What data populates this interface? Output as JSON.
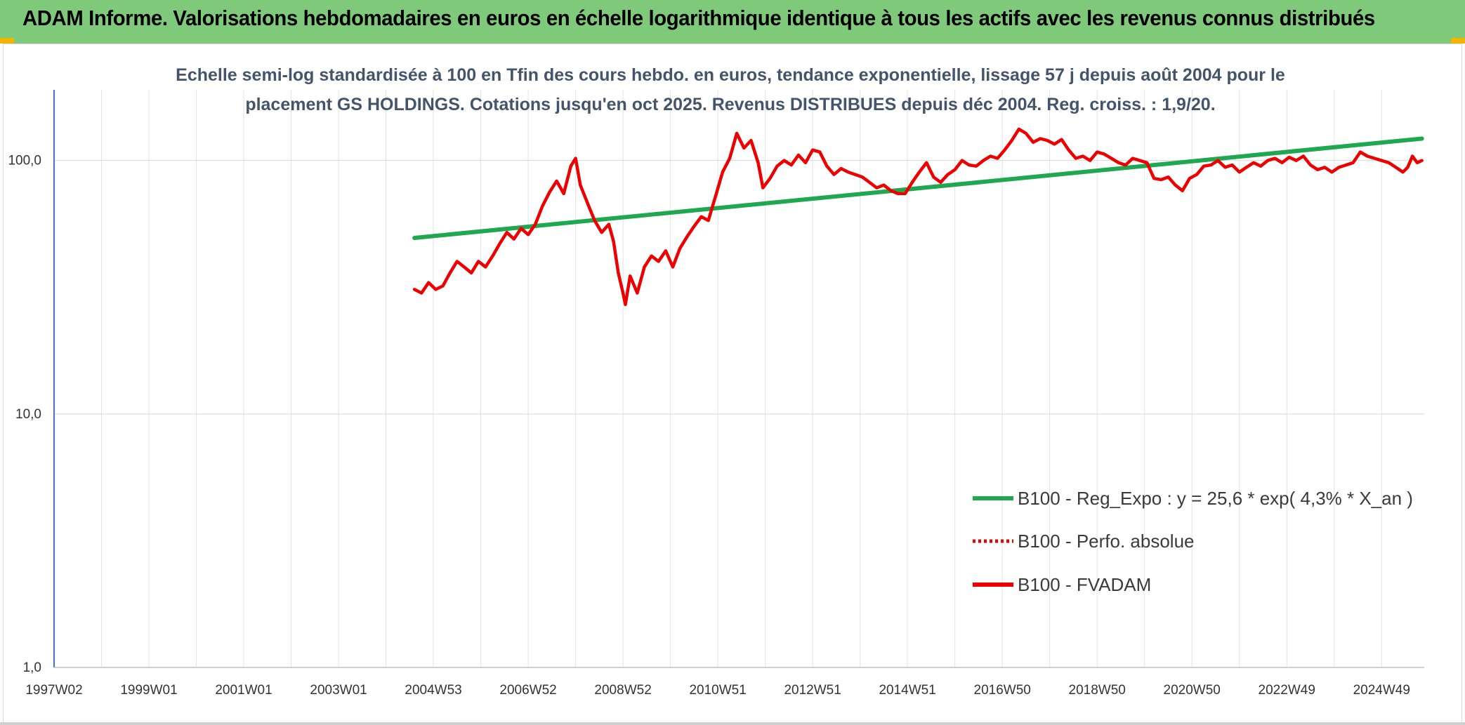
{
  "header": {
    "title": "ADAM Informe. Valorisations hebdomadaires en euros en échelle logarithmique identique à tous les actifs avec les revenus connus distribués"
  },
  "colors": {
    "header_bg": "#7fc97a",
    "trend": "#1fa84f",
    "price": "#ee0000",
    "subtitle": "#44546a"
  },
  "chart_data": {
    "type": "line",
    "title_lines": [
      "Echelle semi-log standardisée à 100 en Tfin des cours hebdo. en euros, tendance exponentielle, lissage 57 j depuis août 2004 pour le",
      "placement GS HOLDINGS. Cotations jusqu'en oct 2025. Revenus DISTRIBUES depuis déc 2004. Reg. croiss. : 1,9/20."
    ],
    "y_scale": "log",
    "ylim": [
      1,
      190
    ],
    "y_ticks": [
      {
        "value": 1,
        "label": "1,0"
      },
      {
        "value": 10,
        "label": "10,0"
      },
      {
        "value": 100,
        "label": "100,0"
      }
    ],
    "xlim": [
      1997.0,
      2025.9
    ],
    "x_ticks": [
      {
        "value": 1997.0,
        "label": "1997W02"
      },
      {
        "value": 1999.0,
        "label": "1999W01"
      },
      {
        "value": 2001.0,
        "label": "2001W01"
      },
      {
        "value": 2003.0,
        "label": "2003W01"
      },
      {
        "value": 2005.0,
        "label": "2004W53"
      },
      {
        "value": 2007.0,
        "label": "2006W52"
      },
      {
        "value": 2009.0,
        "label": "2008W52"
      },
      {
        "value": 2011.0,
        "label": "2010W51"
      },
      {
        "value": 2013.0,
        "label": "2012W51"
      },
      {
        "value": 2015.0,
        "label": "2014W51"
      },
      {
        "value": 2017.0,
        "label": "2016W50"
      },
      {
        "value": 2019.0,
        "label": "2018W50"
      },
      {
        "value": 2021.0,
        "label": "2020W50"
      },
      {
        "value": 2023.0,
        "label": "2022W49"
      },
      {
        "value": 2025.0,
        "label": "2024W49"
      }
    ],
    "grid": true,
    "legend_position": "bottom-right",
    "series": [
      {
        "name": "B100 - Reg_Expo : y = 25,6 * exp( 4,3% *  X_an )",
        "color": "#1fa84f",
        "style": "solid",
        "points": [
          [
            2004.6,
            49.5
          ],
          [
            2025.85,
            122
          ]
        ]
      },
      {
        "name": "B100 - Perfo. absolue",
        "color": "#ee0000",
        "style": "dotted",
        "points": []
      },
      {
        "name": "B100 - FVADAM",
        "color": "#ee0000",
        "style": "solid",
        "points": [
          [
            2004.6,
            31
          ],
          [
            2004.75,
            30
          ],
          [
            2004.9,
            33
          ],
          [
            2005.05,
            31
          ],
          [
            2005.2,
            32
          ],
          [
            2005.35,
            36
          ],
          [
            2005.5,
            40
          ],
          [
            2005.65,
            38
          ],
          [
            2005.8,
            36
          ],
          [
            2005.95,
            40
          ],
          [
            2006.1,
            38
          ],
          [
            2006.25,
            42
          ],
          [
            2006.4,
            47
          ],
          [
            2006.55,
            52
          ],
          [
            2006.7,
            49
          ],
          [
            2006.85,
            54
          ],
          [
            2007.0,
            51
          ],
          [
            2007.15,
            56
          ],
          [
            2007.3,
            66
          ],
          [
            2007.45,
            75
          ],
          [
            2007.6,
            83
          ],
          [
            2007.75,
            74
          ],
          [
            2007.9,
            95
          ],
          [
            2008.0,
            102
          ],
          [
            2008.1,
            80
          ],
          [
            2008.25,
            68
          ],
          [
            2008.4,
            58
          ],
          [
            2008.55,
            52
          ],
          [
            2008.7,
            56
          ],
          [
            2008.8,
            48
          ],
          [
            2008.9,
            36
          ],
          [
            2009.0,
            30
          ],
          [
            2009.05,
            27
          ],
          [
            2009.15,
            35
          ],
          [
            2009.3,
            30
          ],
          [
            2009.45,
            38
          ],
          [
            2009.6,
            42
          ],
          [
            2009.75,
            40
          ],
          [
            2009.9,
            44
          ],
          [
            2010.05,
            38
          ],
          [
            2010.2,
            45
          ],
          [
            2010.35,
            50
          ],
          [
            2010.5,
            55
          ],
          [
            2010.65,
            60
          ],
          [
            2010.8,
            58
          ],
          [
            2010.95,
            72
          ],
          [
            2011.1,
            90
          ],
          [
            2011.25,
            102
          ],
          [
            2011.4,
            128
          ],
          [
            2011.55,
            112
          ],
          [
            2011.7,
            120
          ],
          [
            2011.85,
            98
          ],
          [
            2011.95,
            78
          ],
          [
            2012.1,
            85
          ],
          [
            2012.25,
            95
          ],
          [
            2012.4,
            100
          ],
          [
            2012.55,
            96
          ],
          [
            2012.7,
            105
          ],
          [
            2012.85,
            98
          ],
          [
            2013.0,
            110
          ],
          [
            2013.15,
            108
          ],
          [
            2013.3,
            95
          ],
          [
            2013.45,
            88
          ],
          [
            2013.6,
            93
          ],
          [
            2013.75,
            90
          ],
          [
            2013.9,
            88
          ],
          [
            2014.05,
            86
          ],
          [
            2014.2,
            82
          ],
          [
            2014.35,
            78
          ],
          [
            2014.5,
            80
          ],
          [
            2014.65,
            76
          ],
          [
            2014.8,
            74
          ],
          [
            2014.95,
            74
          ],
          [
            2015.1,
            82
          ],
          [
            2015.25,
            90
          ],
          [
            2015.4,
            98
          ],
          [
            2015.55,
            86
          ],
          [
            2015.7,
            82
          ],
          [
            2015.85,
            88
          ],
          [
            2016.0,
            92
          ],
          [
            2016.15,
            100
          ],
          [
            2016.3,
            96
          ],
          [
            2016.45,
            95
          ],
          [
            2016.6,
            100
          ],
          [
            2016.75,
            104
          ],
          [
            2016.9,
            102
          ],
          [
            2017.05,
            110
          ],
          [
            2017.2,
            120
          ],
          [
            2017.35,
            133
          ],
          [
            2017.5,
            128
          ],
          [
            2017.65,
            118
          ],
          [
            2017.8,
            122
          ],
          [
            2017.95,
            120
          ],
          [
            2018.1,
            116
          ],
          [
            2018.25,
            121
          ],
          [
            2018.4,
            110
          ],
          [
            2018.55,
            102
          ],
          [
            2018.7,
            104
          ],
          [
            2018.85,
            100
          ],
          [
            2019.0,
            108
          ],
          [
            2019.15,
            106
          ],
          [
            2019.3,
            102
          ],
          [
            2019.45,
            98
          ],
          [
            2019.6,
            96
          ],
          [
            2019.75,
            102
          ],
          [
            2019.9,
            100
          ],
          [
            2020.05,
            98
          ],
          [
            2020.2,
            85
          ],
          [
            2020.35,
            84
          ],
          [
            2020.5,
            86
          ],
          [
            2020.65,
            80
          ],
          [
            2020.8,
            76
          ],
          [
            2020.95,
            85
          ],
          [
            2021.1,
            88
          ],
          [
            2021.25,
            95
          ],
          [
            2021.4,
            96
          ],
          [
            2021.55,
            100
          ],
          [
            2021.7,
            94
          ],
          [
            2021.85,
            96
          ],
          [
            2022.0,
            90
          ],
          [
            2022.15,
            94
          ],
          [
            2022.3,
            98
          ],
          [
            2022.45,
            95
          ],
          [
            2022.6,
            100
          ],
          [
            2022.75,
            102
          ],
          [
            2022.9,
            98
          ],
          [
            2023.05,
            103
          ],
          [
            2023.2,
            100
          ],
          [
            2023.35,
            104
          ],
          [
            2023.5,
            96
          ],
          [
            2023.65,
            92
          ],
          [
            2023.8,
            94
          ],
          [
            2023.95,
            90
          ],
          [
            2024.1,
            94
          ],
          [
            2024.25,
            96
          ],
          [
            2024.4,
            98
          ],
          [
            2024.55,
            108
          ],
          [
            2024.7,
            104
          ],
          [
            2024.85,
            102
          ],
          [
            2025.0,
            100
          ],
          [
            2025.15,
            98
          ],
          [
            2025.3,
            94
          ],
          [
            2025.45,
            90
          ],
          [
            2025.55,
            94
          ],
          [
            2025.65,
            104
          ],
          [
            2025.75,
            98
          ],
          [
            2025.85,
            100
          ]
        ]
      }
    ]
  }
}
